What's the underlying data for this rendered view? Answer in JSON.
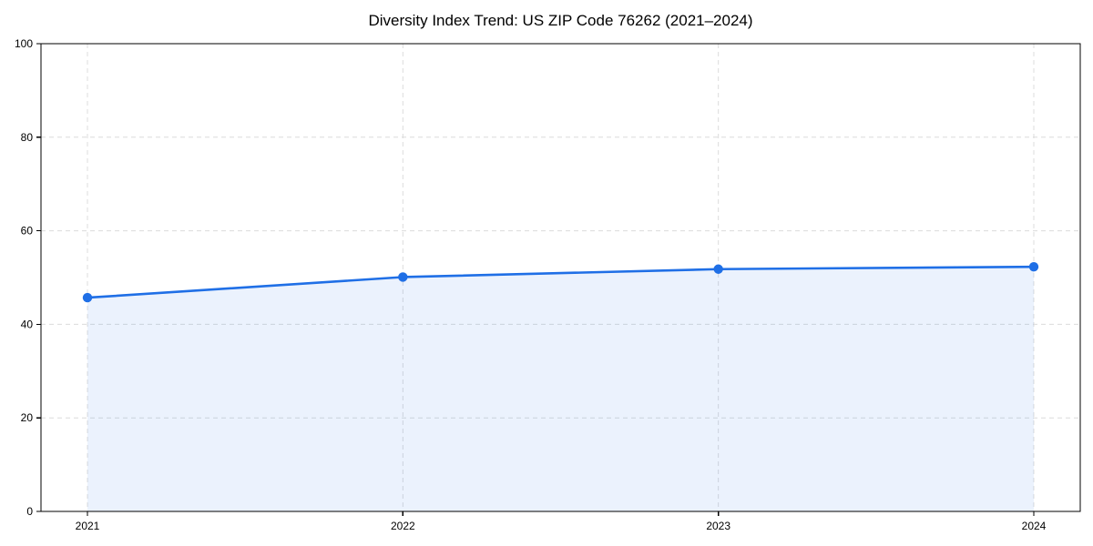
{
  "chart_data": {
    "type": "area",
    "title": "Diversity Index Trend: US ZIP Code 76262 (2021–2024)",
    "categories": [
      "2021",
      "2022",
      "2023",
      "2024"
    ],
    "series": [
      {
        "name": "Diversity Index",
        "values": [
          45.7,
          50.1,
          51.8,
          52.3
        ]
      }
    ],
    "xlabel": "",
    "ylabel": "",
    "ylim": [
      0,
      100
    ],
    "yticks": [
      0,
      20,
      40,
      60,
      80,
      100
    ],
    "grid": "dashed, horizontal and vertical",
    "legend_position": "none",
    "colors": {
      "line": "#1f6fe6",
      "marker": "#1f6fe6",
      "fill": "rgba(31, 111, 230, 0.09)",
      "grid": "#dcdcdc",
      "axis": "#000000",
      "text": "#000000",
      "background": "#ffffff"
    }
  }
}
